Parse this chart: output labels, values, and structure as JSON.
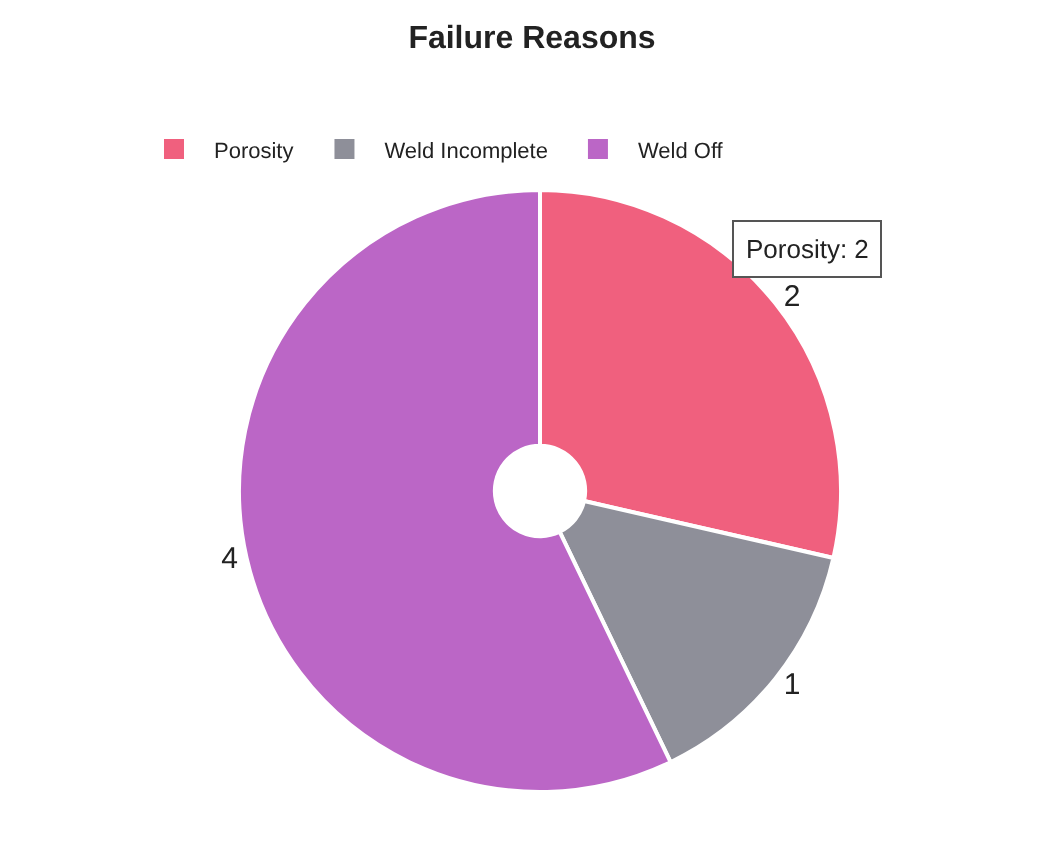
{
  "chart_data": {
    "type": "donut",
    "title": "Failure Reasons",
    "categories": [
      "Porosity",
      "Weld Incomplete",
      "Weld Off"
    ],
    "values": [
      2,
      1,
      4
    ],
    "colors": [
      "#f0607e",
      "#8e8f99",
      "#bb66c6"
    ],
    "data_labels": true,
    "legend": "top",
    "annotations": [
      "Porosity: 2"
    ]
  }
}
